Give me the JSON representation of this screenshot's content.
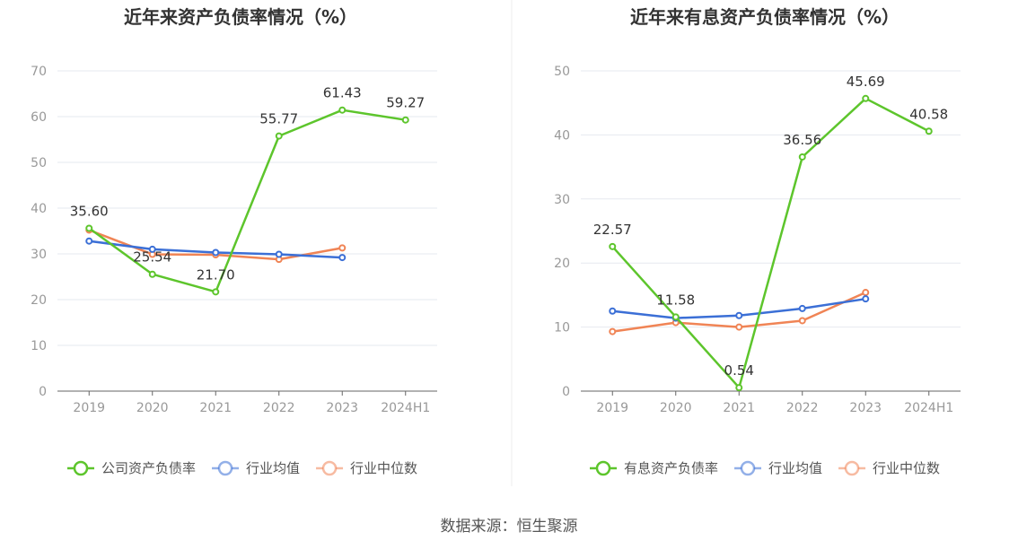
{
  "source": "数据来源：恒生聚源",
  "chart_data": [
    {
      "type": "line",
      "title": "近年来资产负债率情况（%）",
      "categories": [
        "2019",
        "2020",
        "2021",
        "2022",
        "2023",
        "2024H1"
      ],
      "ylim": [
        0,
        70
      ],
      "yticks": [
        0,
        10,
        20,
        30,
        40,
        50,
        60,
        70
      ],
      "grid": true,
      "legend_position": "bottom",
      "series": [
        {
          "name": "公司资产负债率",
          "color": "#5dc52c",
          "values": [
            35.6,
            25.54,
            21.7,
            55.77,
            61.43,
            59.27
          ],
          "labels": [
            "35.60",
            "25.54",
            "21.70",
            "55.77",
            "61.43",
            "59.27"
          ]
        },
        {
          "name": "行业均值",
          "color": "#3b6fd6",
          "values": [
            32.8,
            31.0,
            30.3,
            29.9,
            29.2,
            null
          ]
        },
        {
          "name": "行业中位数",
          "color": "#f08455",
          "values": [
            35.2,
            29.9,
            29.8,
            28.8,
            31.3,
            null
          ]
        }
      ]
    },
    {
      "type": "line",
      "title": "近年来有息资产负债率情况（%）",
      "categories": [
        "2019",
        "2020",
        "2021",
        "2022",
        "2023",
        "2024H1"
      ],
      "ylim": [
        0,
        50
      ],
      "yticks": [
        0,
        10,
        20,
        30,
        40,
        50
      ],
      "grid": true,
      "legend_position": "bottom",
      "series": [
        {
          "name": "有息资产负债率",
          "color": "#5dc52c",
          "values": [
            22.57,
            11.58,
            0.54,
            36.56,
            45.69,
            40.58
          ],
          "labels": [
            "22.57",
            "11.58",
            "0.54",
            "36.56",
            "45.69",
            "40.58"
          ]
        },
        {
          "name": "行业均值",
          "color": "#3b6fd6",
          "values": [
            12.5,
            11.4,
            11.8,
            12.9,
            14.4,
            null
          ]
        },
        {
          "name": "行业中位数",
          "color": "#f08455",
          "values": [
            9.3,
            10.7,
            10.0,
            11.0,
            15.4,
            null
          ]
        }
      ]
    }
  ]
}
